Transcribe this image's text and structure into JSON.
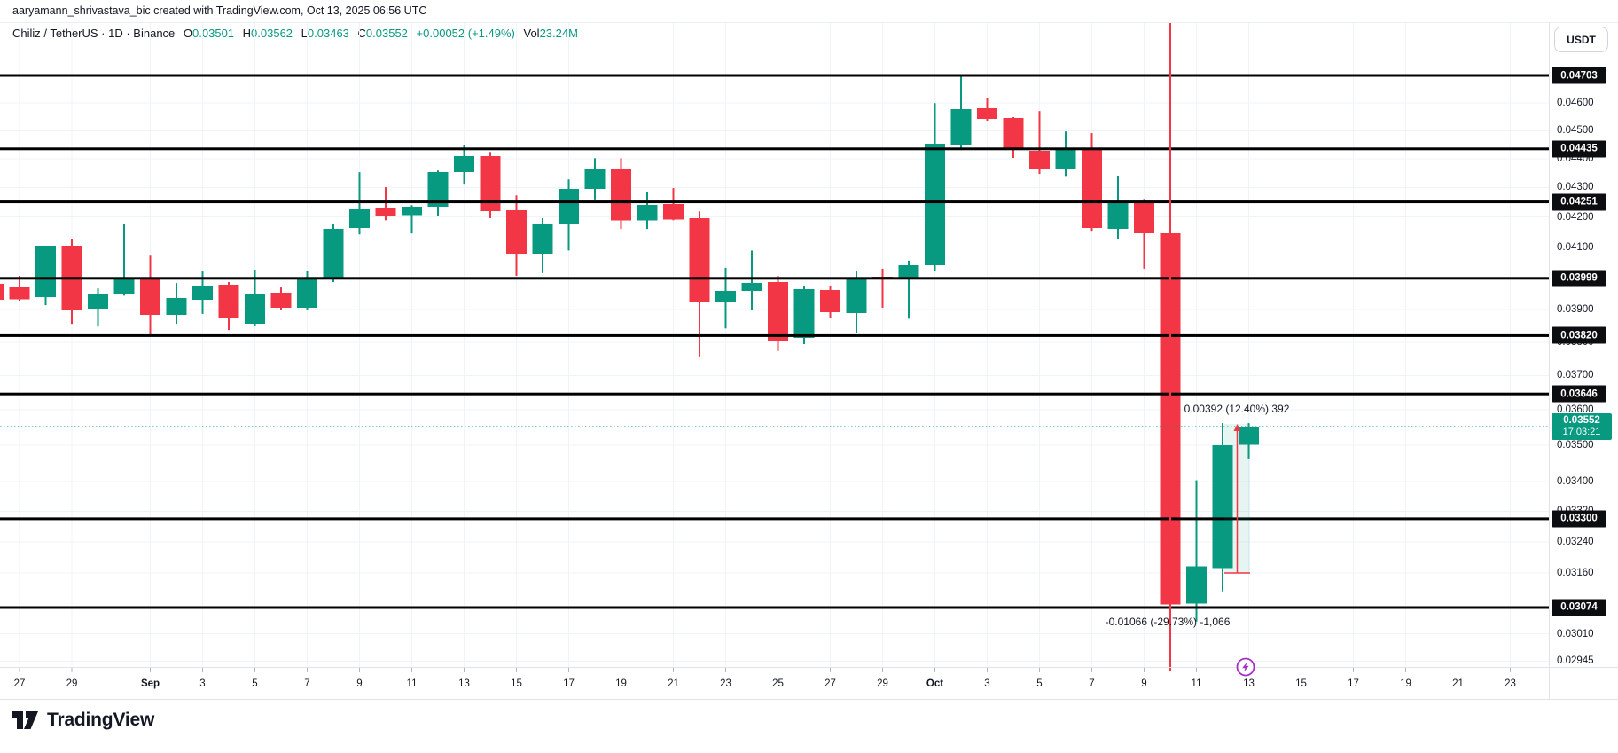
{
  "title_bar": "aaryamann_shrivastava_bic created with TradingView.com, Oct 13, 2025 06:56 UTC",
  "header": {
    "symbol_line": "Chiliz / TetherUS · 1D · Binance",
    "open_label": "O",
    "open_value": "0.03501",
    "high_label": "H",
    "high_value": "0.03562",
    "low_label": "L",
    "low_value": "0.03463",
    "close_label": "C",
    "close_value": "0.03552",
    "change": "+0.00052 (+1.49%)",
    "volume_label": "Vol",
    "volume_value": "23.24M"
  },
  "toolbar": {
    "currency_button": "USDT"
  },
  "colors": {
    "up": "#089981",
    "down": "#f23645",
    "level_line": "#000000",
    "grid": "#f0f3fa",
    "text": "#131722",
    "border": "#e0e3eb",
    "badge_bg": "#0c0d10",
    "badge_fg": "#ffffff",
    "current_badge_bg": "#089981",
    "event_purple": "#a62dc9",
    "tool_fill": "rgba(8,153,129,0.10)",
    "tool_arrow": "#f23645"
  },
  "annotations": {
    "gain_measure": "0.00392 (12.40%) 392",
    "loss_measure": "-0.01066 (-29.73%) -1,066"
  },
  "price_axis": {
    "current": {
      "price": 0.03552,
      "label": "0.03552",
      "countdown": "17:03:21"
    },
    "level_badges": [
      "0.04703",
      "0.04435",
      "0.04251",
      "0.03999",
      "0.03820",
      "0.03646",
      "0.03300",
      "0.03074"
    ],
    "ticks": [
      "0.04600",
      "0.04500",
      "0.04400",
      "0.04300",
      "0.04200",
      "0.04100",
      "0.03900",
      "0.03800",
      "0.03700",
      "0.03600",
      "0.03500",
      "0.03400",
      "0.03320",
      "0.03240",
      "0.03160",
      "0.03010",
      "0.02945"
    ]
  },
  "time_axis": [
    {
      "day": 0,
      "label": "27",
      "bold": false
    },
    {
      "day": 2,
      "label": "29",
      "bold": false
    },
    {
      "day": 5,
      "label": "Sep",
      "bold": true
    },
    {
      "day": 7,
      "label": "3",
      "bold": false
    },
    {
      "day": 9,
      "label": "5",
      "bold": false
    },
    {
      "day": 11,
      "label": "7",
      "bold": false
    },
    {
      "day": 13,
      "label": "9",
      "bold": false
    },
    {
      "day": 15,
      "label": "11",
      "bold": false
    },
    {
      "day": 17,
      "label": "13",
      "bold": false
    },
    {
      "day": 19,
      "label": "15",
      "bold": false
    },
    {
      "day": 21,
      "label": "17",
      "bold": false
    },
    {
      "day": 23,
      "label": "19",
      "bold": false
    },
    {
      "day": 25,
      "label": "21",
      "bold": false
    },
    {
      "day": 27,
      "label": "23",
      "bold": false
    },
    {
      "day": 29,
      "label": "25",
      "bold": false
    },
    {
      "day": 31,
      "label": "27",
      "bold": false
    },
    {
      "day": 33,
      "label": "29",
      "bold": false
    },
    {
      "day": 35,
      "label": "Oct",
      "bold": true
    },
    {
      "day": 37,
      "label": "3",
      "bold": false
    },
    {
      "day": 39,
      "label": "5",
      "bold": false
    },
    {
      "day": 41,
      "label": "7",
      "bold": false
    },
    {
      "day": 43,
      "label": "9",
      "bold": false
    },
    {
      "day": 45,
      "label": "11",
      "bold": false
    },
    {
      "day": 47,
      "label": "13",
      "bold": false
    },
    {
      "day": 49,
      "label": "15",
      "bold": false
    },
    {
      "day": 51,
      "label": "17",
      "bold": false
    },
    {
      "day": 53,
      "label": "19",
      "bold": false
    },
    {
      "day": 55,
      "label": "21",
      "bold": false
    },
    {
      "day": 57,
      "label": "23",
      "bold": false
    }
  ],
  "footer": {
    "brand": "TradingView"
  },
  "chart_data": {
    "type": "candlestick",
    "title": "Chiliz / TetherUS",
    "interval": "1D",
    "exchange": "Binance",
    "scale": "logarithmic",
    "ylim": [
      0.02945,
      0.04703
    ],
    "grid": true,
    "horizontal_levels": [
      0.04703,
      0.04435,
      0.04251,
      0.03999,
      0.0382,
      0.03646,
      0.033,
      0.03074
    ],
    "current_price": 0.03552,
    "vertical_line_date": "Oct 10",
    "measurements": [
      {
        "label": "0.00392 (12.40%) 392",
        "from_price": 0.0316,
        "to_price": 0.03552,
        "direction": "up",
        "over_dates": [
          "Oct 12",
          "Oct 13"
        ]
      },
      {
        "label": "-0.01066 (-29.73%) -1,066",
        "from_price": 0.04145,
        "to_price": 0.03082,
        "direction": "down",
        "over_dates": [
          "Oct 10"
        ]
      }
    ],
    "candles_format": [
      "date",
      "open",
      "high",
      "low",
      "close"
    ],
    "candles": [
      [
        "Aug 26",
        0.03981,
        0.03985,
        0.03928,
        0.03931
      ],
      [
        "Aug 27",
        0.0397,
        0.04007,
        0.03928,
        0.03933
      ],
      [
        "Aug 28",
        0.03939,
        0.04104,
        0.03914,
        0.04104
      ],
      [
        "Aug 29",
        0.04104,
        0.04125,
        0.03856,
        0.039
      ],
      [
        "Aug 30",
        0.03903,
        0.03967,
        0.03848,
        0.03951
      ],
      [
        "Aug 31",
        0.03948,
        0.04178,
        0.03944,
        0.03999
      ],
      [
        "Sep 1",
        0.03996,
        0.04072,
        0.03821,
        0.03884
      ],
      [
        "Sep 2",
        0.03884,
        0.03984,
        0.03856,
        0.03937
      ],
      [
        "Sep 3",
        0.03931,
        0.04021,
        0.03887,
        0.03973
      ],
      [
        "Sep 4",
        0.03979,
        0.03987,
        0.03837,
        0.03875
      ],
      [
        "Sep 5",
        0.03856,
        0.04027,
        0.0385,
        0.03951
      ],
      [
        "Sep 6",
        0.03953,
        0.0397,
        0.03898,
        0.03906
      ],
      [
        "Sep 7",
        0.03906,
        0.04024,
        0.039,
        0.04002
      ],
      [
        "Sep 8",
        0.04002,
        0.04178,
        0.03987,
        0.0416
      ],
      [
        "Sep 9",
        0.04163,
        0.04353,
        0.04142,
        0.04225
      ],
      [
        "Sep 10",
        0.04228,
        0.04301,
        0.04189,
        0.04204
      ],
      [
        "Sep 11",
        0.04207,
        0.0424,
        0.04145,
        0.04234
      ],
      [
        "Sep 12",
        0.04234,
        0.04359,
        0.04204,
        0.04353
      ],
      [
        "Sep 13",
        0.04353,
        0.04447,
        0.0431,
        0.04409
      ],
      [
        "Sep 14",
        0.04409,
        0.04424,
        0.04196,
        0.04219
      ],
      [
        "Sep 15",
        0.04222,
        0.04273,
        0.04007,
        0.04078
      ],
      [
        "Sep 16",
        0.04078,
        0.04196,
        0.04016,
        0.04178
      ],
      [
        "Sep 17",
        0.04178,
        0.04328,
        0.04089,
        0.04295
      ],
      [
        "Sep 18",
        0.04295,
        0.04402,
        0.04259,
        0.04362
      ],
      [
        "Sep 19",
        0.04365,
        0.04402,
        0.0416,
        0.04189
      ],
      [
        "Sep 20",
        0.04189,
        0.04285,
        0.0416,
        0.0424
      ],
      [
        "Sep 21",
        0.04243,
        0.04298,
        0.04189,
        0.04192
      ],
      [
        "Sep 22",
        0.04196,
        0.04219,
        0.03757,
        0.03925
      ],
      [
        "Sep 23",
        0.03925,
        0.04033,
        0.03842,
        0.03959
      ],
      [
        "Sep 24",
        0.03959,
        0.04089,
        0.039,
        0.03984
      ],
      [
        "Sep 25",
        0.03987,
        0.04007,
        0.03773,
        0.03805
      ],
      [
        "Sep 26",
        0.03813,
        0.03976,
        0.03794,
        0.03965
      ],
      [
        "Sep 27",
        0.03962,
        0.03973,
        0.03875,
        0.03892
      ],
      [
        "Sep 28",
        0.03889,
        0.04021,
        0.03829,
        0.04002
      ],
      [
        "Sep 29",
        0.04004,
        0.0403,
        0.03906,
        0.03996
      ],
      [
        "Sep 30",
        0.03999,
        0.04056,
        0.03872,
        0.04041
      ],
      [
        "Oct 1",
        0.04041,
        0.046,
        0.04021,
        0.04453
      ],
      [
        "Oct 2",
        0.0445,
        0.04703,
        0.04431,
        0.04578
      ],
      [
        "Oct 3",
        0.04581,
        0.0462,
        0.04536,
        0.04543
      ],
      [
        "Oct 4",
        0.04546,
        0.04549,
        0.04403,
        0.04434
      ],
      [
        "Oct 5",
        0.04428,
        0.04571,
        0.04347,
        0.04362
      ],
      [
        "Oct 6",
        0.04365,
        0.04497,
        0.04337,
        0.04434
      ],
      [
        "Oct 7",
        0.04434,
        0.04491,
        0.04151,
        0.04163
      ],
      [
        "Oct 8",
        0.0416,
        0.04341,
        0.04125,
        0.04249
      ],
      [
        "Oct 9",
        0.04252,
        0.04261,
        0.0403,
        0.04145
      ],
      [
        "Oct 10",
        0.04145,
        0.0417,
        0.03038,
        0.03082
      ],
      [
        "Oct 11",
        0.03084,
        0.03403,
        0.0304,
        0.03177
      ],
      [
        "Oct 12",
        0.03172,
        0.03562,
        0.03114,
        0.035
      ],
      [
        "Oct 13",
        0.03501,
        0.03562,
        0.03463,
        0.03552
      ]
    ]
  }
}
